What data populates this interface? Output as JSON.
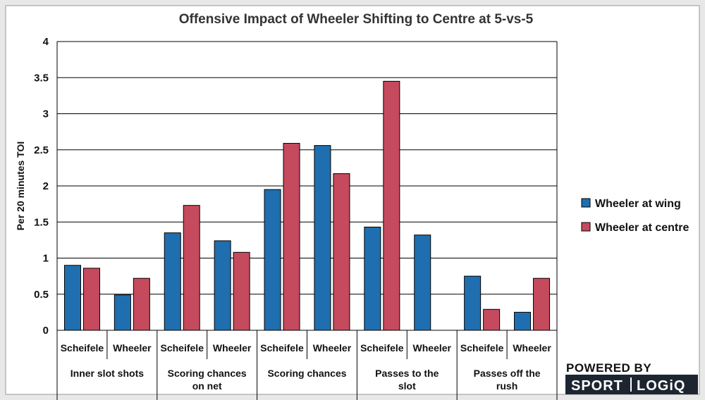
{
  "chart_data": {
    "type": "bar",
    "title": "Offensive Impact of Wheeler Shifting to Centre at 5-vs-5",
    "ylabel": "Per 20 minutes TOI",
    "ylim": [
      0,
      4
    ],
    "yticks": [
      "0",
      "0.5",
      "1",
      "1.5",
      "2",
      "2.5",
      "3",
      "3.5",
      "4"
    ],
    "grid": true,
    "legend_position": "right",
    "groups": [
      {
        "label": "Inner slot shots",
        "players": [
          "Scheifele",
          "Wheeler"
        ]
      },
      {
        "label": "Scoring chances on net",
        "players": [
          "Scheifele",
          "Wheeler"
        ]
      },
      {
        "label": "Scoring chances",
        "players": [
          "Scheifele",
          "Wheeler"
        ]
      },
      {
        "label": "Passes to the slot",
        "players": [
          "Scheifele",
          "Wheeler"
        ]
      },
      {
        "label": "Passes off the rush",
        "players": [
          "Scheifele",
          "Wheeler"
        ]
      }
    ],
    "series": [
      {
        "name": "Wheeler at wing",
        "color": "#1f6fb0",
        "values": [
          0.9,
          0.49,
          1.35,
          1.24,
          1.95,
          2.56,
          1.43,
          1.32,
          0.75,
          0.25
        ]
      },
      {
        "name": "Wheeler at centre",
        "color": "#c54a5e",
        "values": [
          0.86,
          0.72,
          1.73,
          1.08,
          2.59,
          2.17,
          3.45,
          0,
          0.29,
          0.72
        ]
      }
    ]
  },
  "logo": {
    "top_text": "POWERED BY",
    "left_text": "SPORT",
    "right_text": "LOGiQ"
  }
}
